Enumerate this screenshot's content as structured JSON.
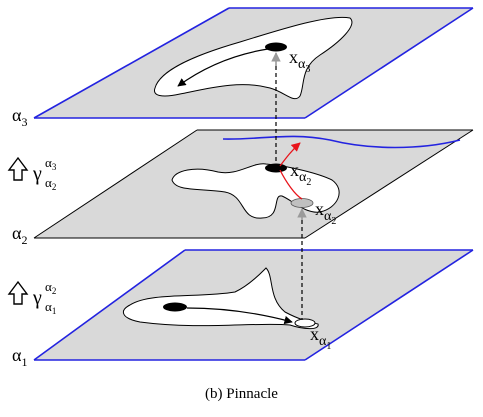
{
  "caption": "(b)  Pinnacle",
  "planes": [
    {
      "label_base": "α",
      "label_sub": "3",
      "point_base": "x",
      "point_sub_base": "α",
      "point_sub_sub": "3"
    },
    {
      "label_base": "α",
      "label_sub": "2",
      "point_base": "x",
      "point_sub_base": "α",
      "point_sub_sub": "2",
      "point2_base": "x",
      "point2_sub_base": "α",
      "point2_sub_sub": "2"
    },
    {
      "label_base": "α",
      "label_sub": "1",
      "point_base": "x",
      "point_sub_base": "α",
      "point_sub_sub": "1"
    }
  ],
  "maps": [
    {
      "symbol": "γ",
      "sup_base": "α",
      "sup_sub": "3",
      "sub_base": "α",
      "sub_sub": "2"
    },
    {
      "symbol": "γ",
      "sup_base": "α",
      "sup_sub": "2",
      "sub_base": "α",
      "sub_sub": "1"
    }
  ],
  "colors": {
    "plane_fill": "#d9d9d9",
    "plane_edge_top": "#000000",
    "plane_edge_blue": "#2323e0",
    "red_arrow": "#e8141b",
    "grey_arrow": "#9a9a9a",
    "marker_grey": "#c0c0c0"
  }
}
